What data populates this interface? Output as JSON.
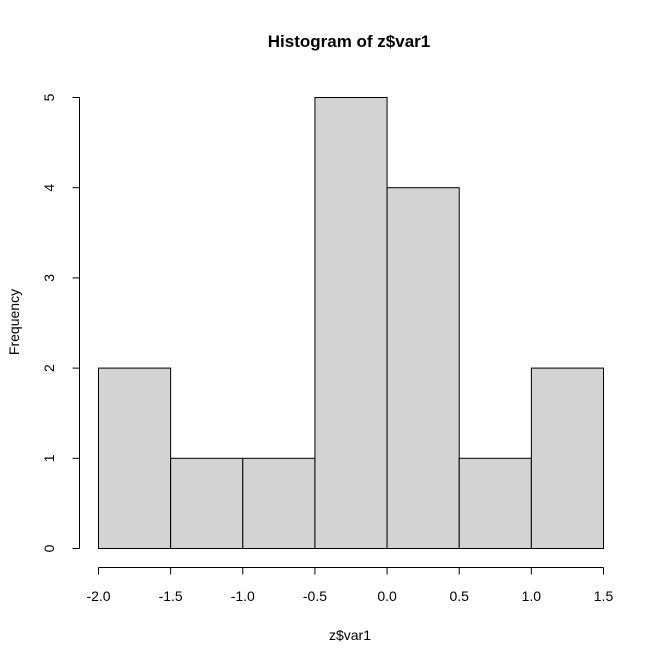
{
  "chart_data": {
    "type": "bar",
    "title": "Histogram of z$var1",
    "xlabel": "z$var1",
    "ylabel": "Frequency",
    "bins": [
      {
        "from": -2.0,
        "to": -1.5,
        "count": 2
      },
      {
        "from": -1.5,
        "to": -1.0,
        "count": 1
      },
      {
        "from": -1.0,
        "to": -0.5,
        "count": 1
      },
      {
        "from": -0.5,
        "to": 0.0,
        "count": 5
      },
      {
        "from": 0.0,
        "to": 0.5,
        "count": 4
      },
      {
        "from": 0.5,
        "to": 1.0,
        "count": 1
      },
      {
        "from": 1.0,
        "to": 1.5,
        "count": 2
      }
    ],
    "xlim": [
      -2.0,
      1.5
    ],
    "ylim": [
      0,
      5
    ],
    "x_ticks": [
      -2.0,
      -1.5,
      -1.0,
      -0.5,
      0.0,
      0.5,
      1.0,
      1.5
    ],
    "x_tick_labels": [
      "-2.0",
      "-1.5",
      "-1.0",
      "-0.5",
      "0.0",
      "0.5",
      "1.0",
      "1.5"
    ],
    "y_ticks": [
      0,
      1,
      2,
      3,
      4,
      5
    ],
    "y_tick_labels": [
      "0",
      "1",
      "2",
      "3",
      "4",
      "5"
    ],
    "bar_color": "#d3d3d3",
    "grid": false
  }
}
